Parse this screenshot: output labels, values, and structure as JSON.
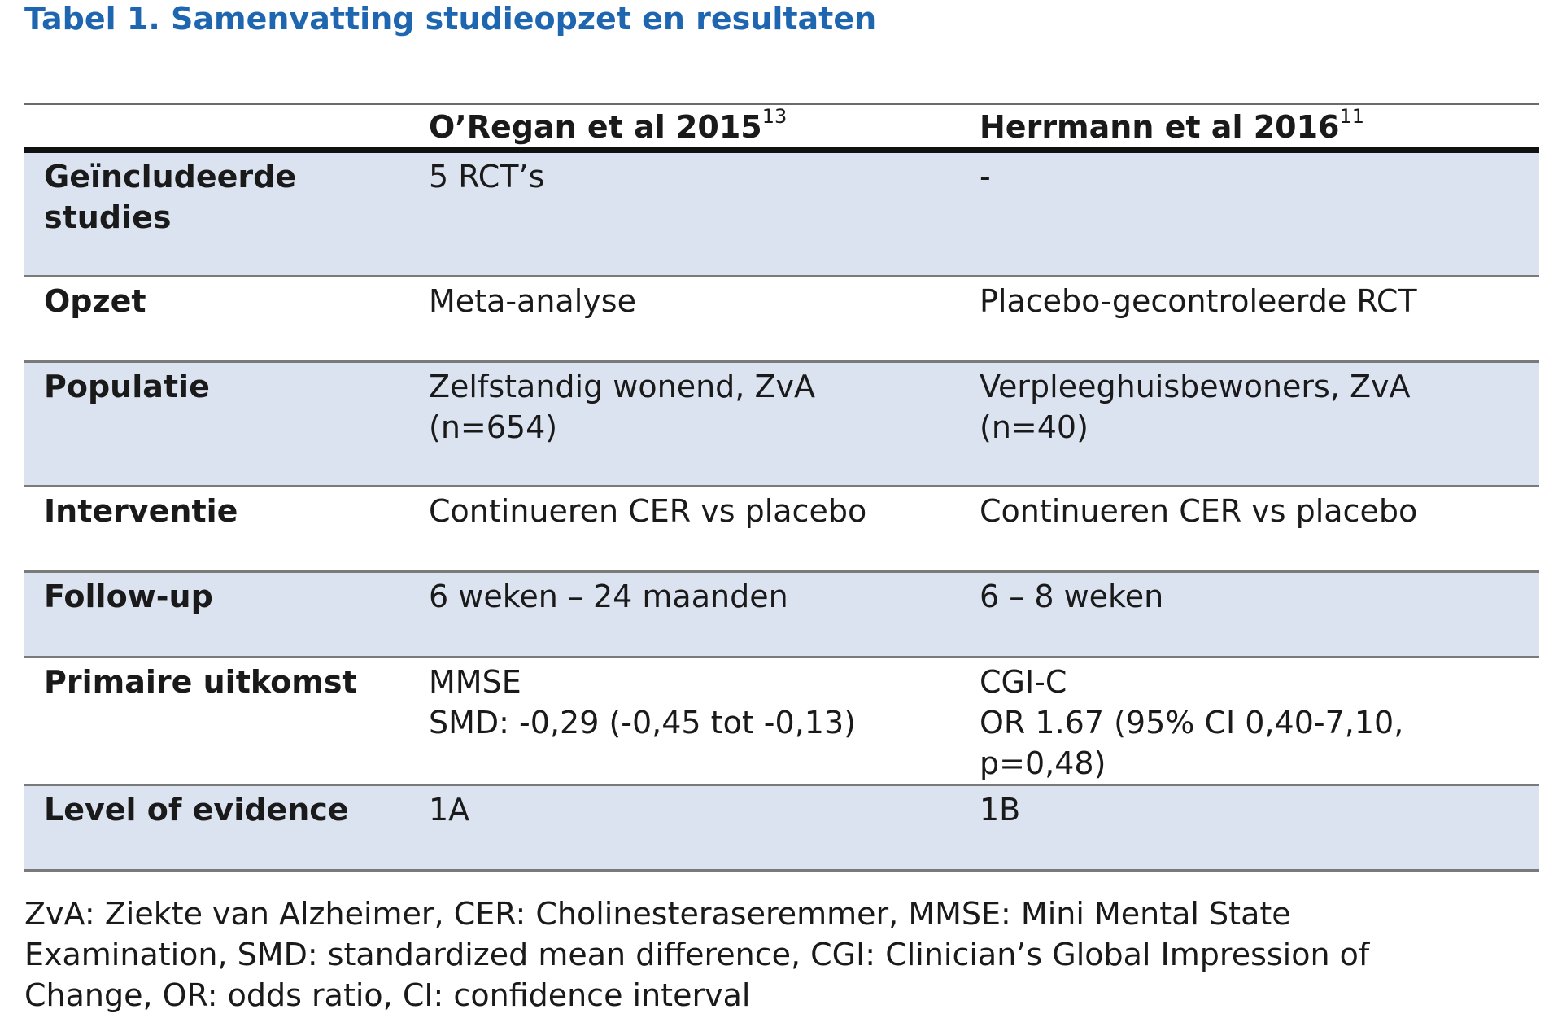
{
  "title": "Tabel 1. Samenvatting studieopzet en resultaten",
  "table": {
    "headers": [
      {
        "text": "",
        "sup": ""
      },
      {
        "text": "O’Regan et al 2015",
        "sup": "13"
      },
      {
        "text": "Herrmann et al 2016",
        "sup": "11"
      }
    ],
    "rows": [
      {
        "label": [
          "Geïncludeerde",
          "studies"
        ],
        "col1": [
          "5 RCT’s"
        ],
        "col2": [
          "-"
        ]
      },
      {
        "label": [
          "Opzet"
        ],
        "col1": [
          "Meta-analyse"
        ],
        "col2": [
          "Placebo-gecontroleerde RCT"
        ]
      },
      {
        "label": [
          "Populatie"
        ],
        "col1": [
          "Zelfstandig wonend, ZvA",
          "(n=654)"
        ],
        "col2": [
          "Verpleeghuisbewoners, ZvA",
          "(n=40)"
        ]
      },
      {
        "label": [
          "Interventie"
        ],
        "col1": [
          "Continueren CER vs placebo"
        ],
        "col2": [
          "Continueren CER vs placebo"
        ]
      },
      {
        "label": [
          "Follow-up"
        ],
        "col1": [
          "6 weken – 24 maanden"
        ],
        "col2": [
          "6 – 8 weken"
        ]
      },
      {
        "label": [
          "Primaire uitkomst"
        ],
        "col1": [
          "MMSE",
          "SMD: -0,29 (-0,45 tot -0,13)"
        ],
        "col2": [
          "CGI-C",
          "OR 1.67 (95% CI 0,40-7,10,",
          "p=0,48)"
        ]
      },
      {
        "label": [
          "Level of evidence"
        ],
        "col1": [
          "1A"
        ],
        "col2": [
          "1B"
        ]
      }
    ]
  },
  "footnote": [
    "ZvA: Ziekte van Alzheimer, CER: Cholinesteraseremmer, MMSE: Mini Mental State",
    "Examination, SMD: standardized mean difference, CGI: Clinician’s Global Impression of",
    "Change, OR: odds ratio, CI: confidence interval"
  ],
  "colors": {
    "title": "#1f66b0",
    "row_shade": "#dce3f0",
    "text": "#1a1a1a"
  }
}
